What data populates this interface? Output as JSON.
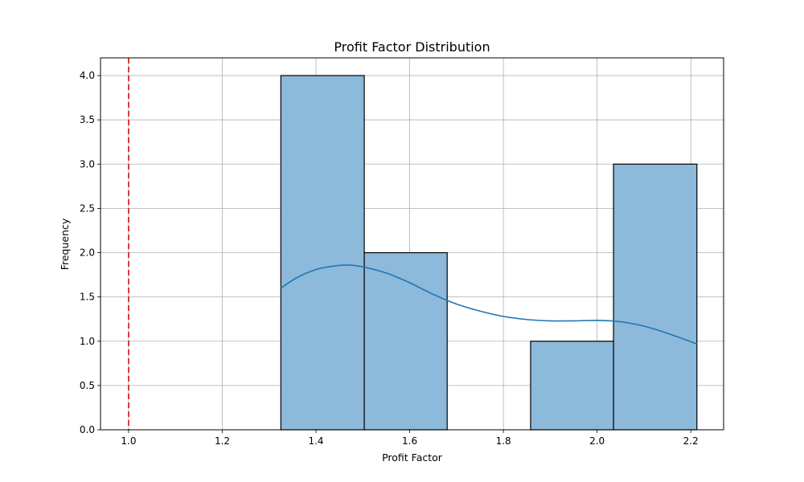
{
  "chart_data": {
    "type": "bar",
    "title": "Profit Factor Distribution",
    "xlabel": "Profit Factor",
    "ylabel": "Frequency",
    "xlim": [
      0.94,
      2.27
    ],
    "ylim": [
      0,
      4.2
    ],
    "xticks": [
      1.0,
      1.2,
      1.4,
      1.6,
      1.8,
      2.0,
      2.2
    ],
    "xtick_labels": [
      "1.0",
      "1.2",
      "1.4",
      "1.6",
      "1.8",
      "2.0",
      "2.2"
    ],
    "yticks": [
      0,
      0.5,
      1.0,
      1.5,
      2.0,
      2.5,
      3.0,
      3.5,
      4.0
    ],
    "ytick_labels": [
      "0.0",
      "0.5",
      "1.0",
      "1.5",
      "2.0",
      "2.5",
      "3.0",
      "3.5",
      "4.0"
    ],
    "grid": true,
    "bins": [
      {
        "start": 1.325,
        "end": 1.503,
        "count": 4
      },
      {
        "start": 1.503,
        "end": 1.68,
        "count": 2
      },
      {
        "start": 1.68,
        "end": 1.858,
        "count": 0
      },
      {
        "start": 1.858,
        "end": 2.035,
        "count": 1
      },
      {
        "start": 2.035,
        "end": 2.213,
        "count": 3
      }
    ],
    "kde": {
      "x": [
        1.325,
        1.36,
        1.4,
        1.44,
        1.47,
        1.5,
        1.55,
        1.6,
        1.65,
        1.7,
        1.75,
        1.8,
        1.85,
        1.9,
        1.95,
        2.0,
        2.05,
        2.1,
        2.15,
        2.213
      ],
      "y": [
        1.6,
        1.72,
        1.81,
        1.85,
        1.86,
        1.84,
        1.77,
        1.66,
        1.53,
        1.42,
        1.34,
        1.28,
        1.245,
        1.23,
        1.23,
        1.235,
        1.22,
        1.17,
        1.09,
        0.97
      ]
    },
    "reference_line": {
      "x": 1.0,
      "color": "#d62728",
      "style": "dashed"
    },
    "colors": {
      "bar_fill": "#8db9da",
      "bar_edge": "#000000",
      "kde_line": "#1f77b4",
      "grid": "#b0b0b0"
    }
  }
}
